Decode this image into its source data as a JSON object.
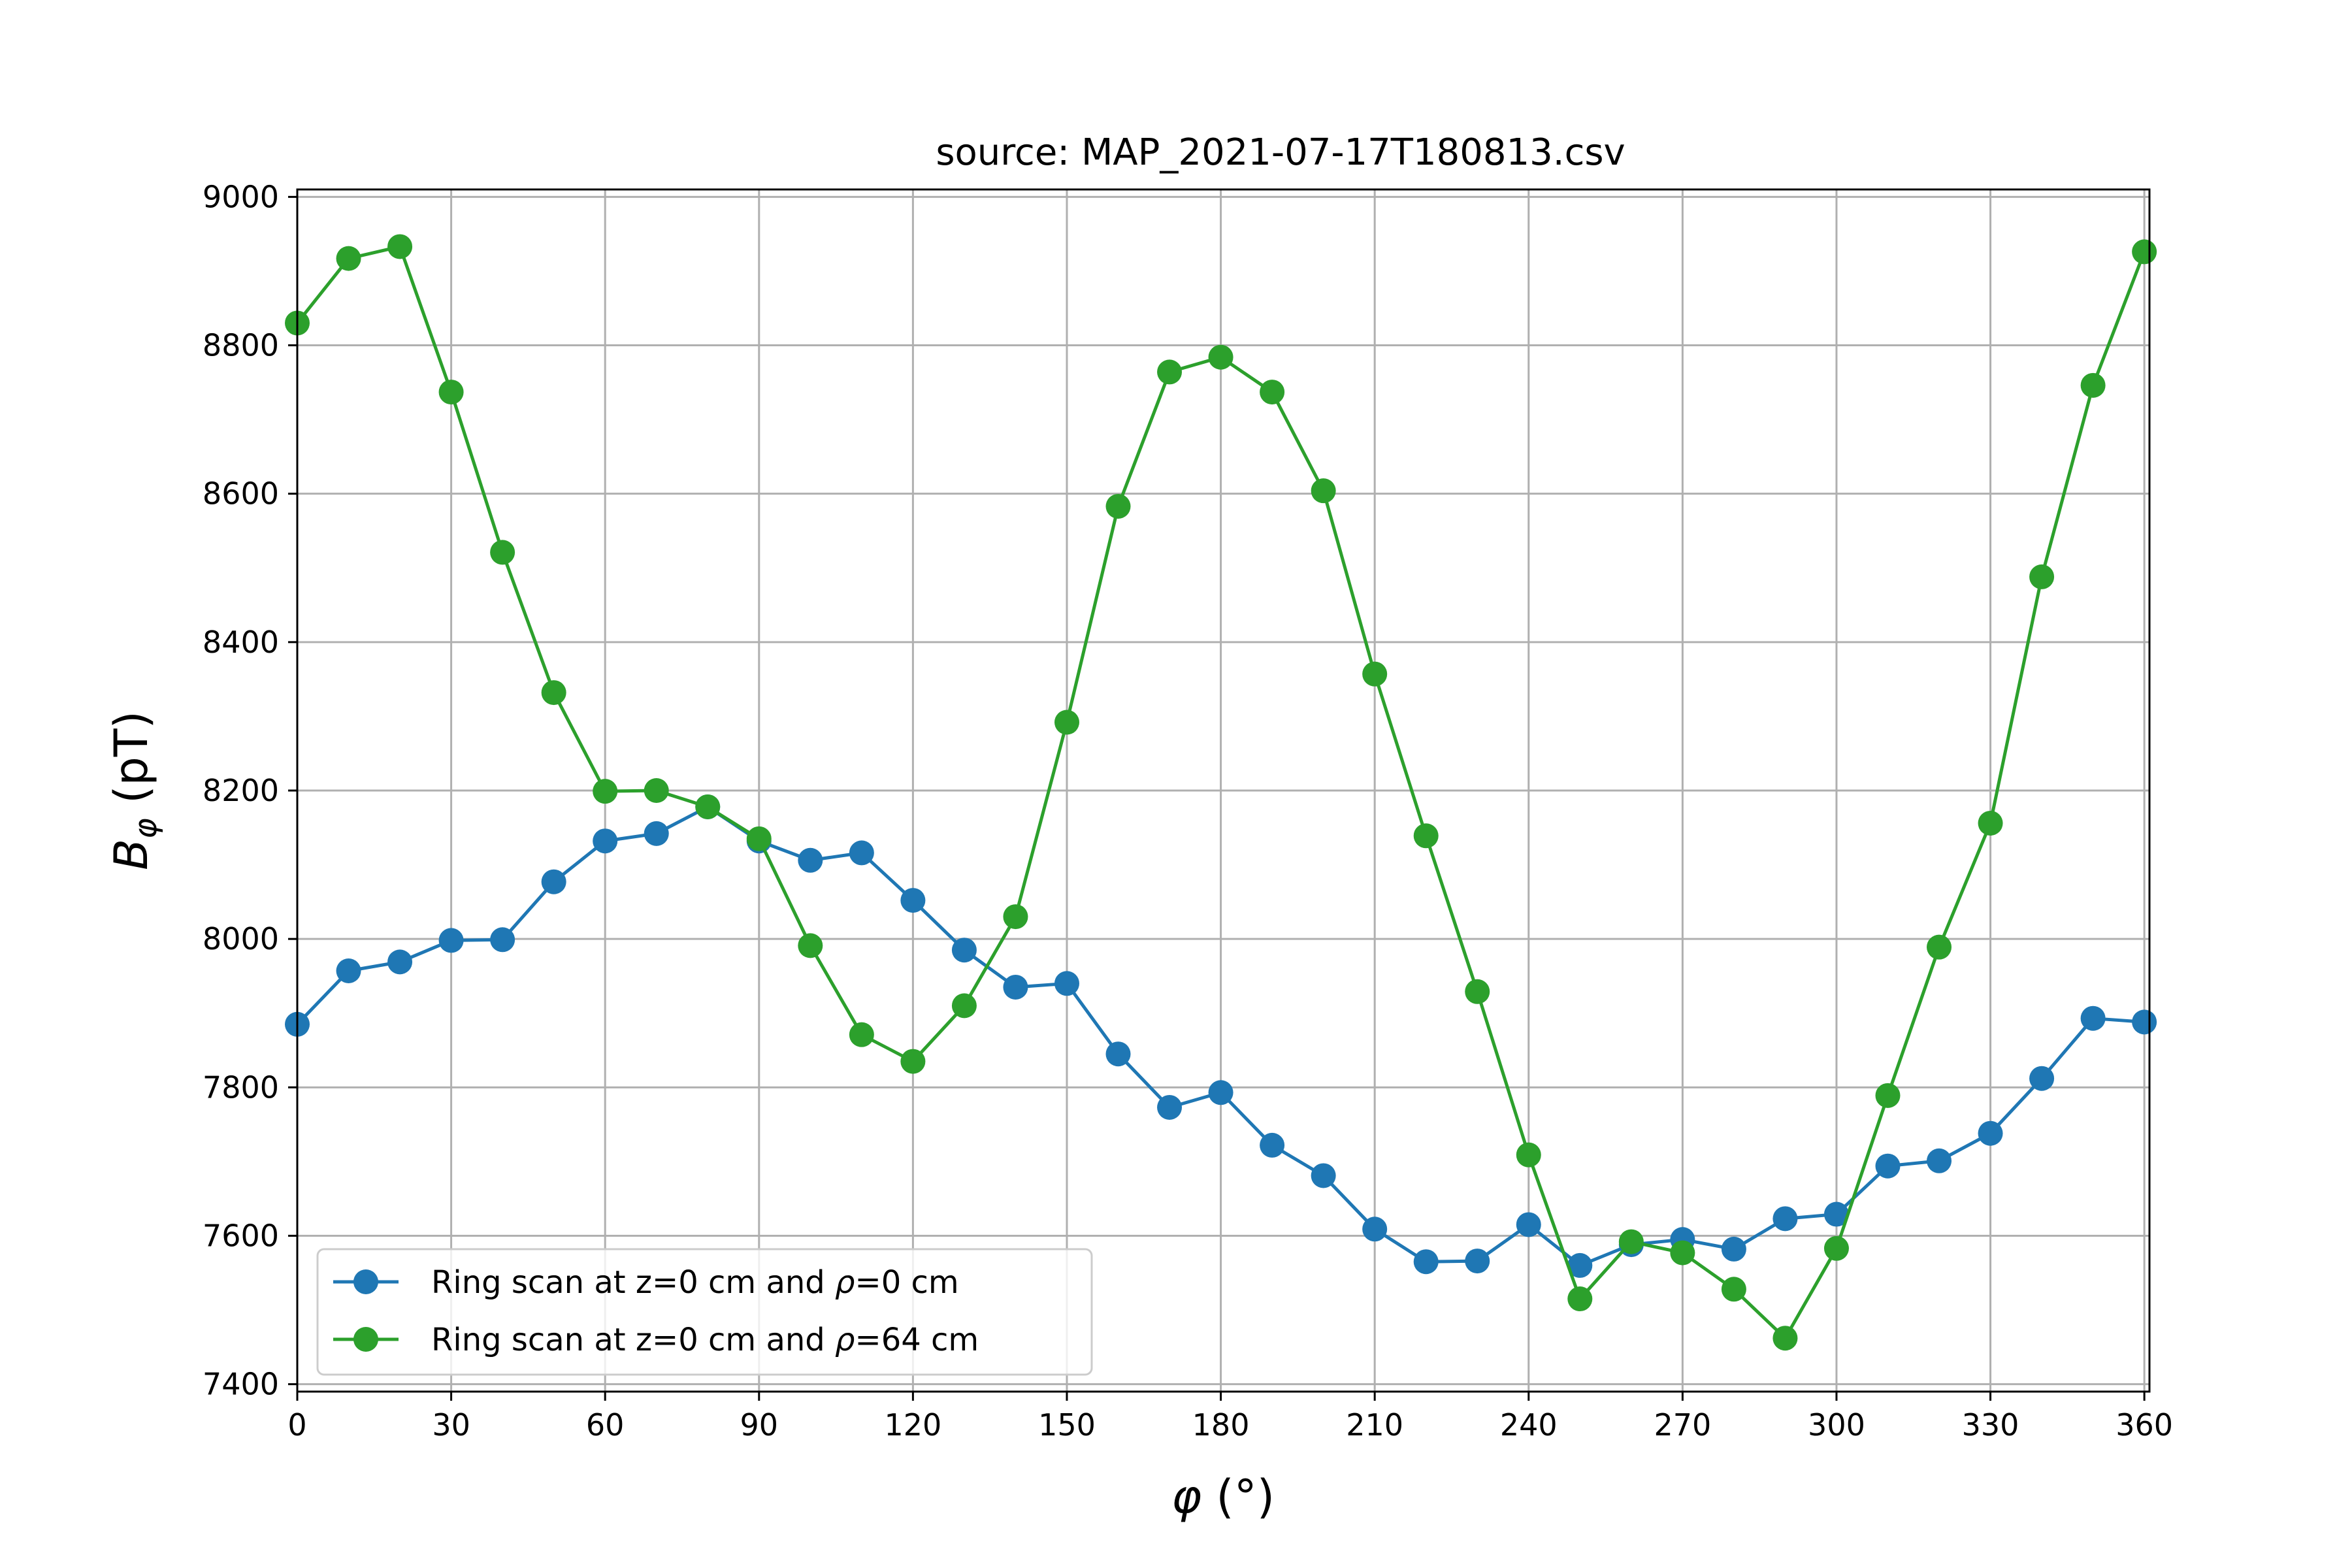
{
  "chart_data": {
    "type": "line",
    "title": "source: MAP_2021-07-17T180813.csv",
    "xlabel": {
      "main": "φ",
      "unit": " (°)"
    },
    "ylabel": {
      "main": "B",
      "sub": "φ",
      "unit": " (pT)"
    },
    "xlim": [
      0,
      361
    ],
    "ylim": [
      7390,
      9010
    ],
    "xticks": [
      0,
      30,
      60,
      90,
      120,
      150,
      180,
      210,
      240,
      270,
      300,
      330,
      360
    ],
    "yticks": [
      7400,
      7600,
      7800,
      8000,
      8200,
      8400,
      8600,
      8800,
      9000
    ],
    "grid": true,
    "legend_position": "lower-left",
    "x": [
      0,
      10,
      20,
      30,
      40,
      50,
      60,
      70,
      80,
      90,
      100,
      110,
      120,
      130,
      140,
      150,
      160,
      170,
      180,
      190,
      200,
      210,
      220,
      230,
      240,
      250,
      260,
      270,
      280,
      290,
      300,
      310,
      320,
      330,
      340,
      350,
      360
    ],
    "series": [
      {
        "name": {
          "prefix": "Ring scan at z=0 cm and ",
          "symbol": "ρ",
          "suffix": "=0 cm"
        },
        "color": "#1f77b4",
        "values": [
          7885,
          7957,
          7969,
          7998,
          7999,
          8077,
          8132,
          8142,
          8178,
          8132,
          8106,
          8116,
          8052,
          7985,
          7935,
          7940,
          7845,
          7773,
          7793,
          7722,
          7681,
          7609,
          7565,
          7566,
          7615,
          7560,
          7588,
          7595,
          7582,
          7623,
          7629,
          7694,
          7701,
          7738,
          7812,
          7893,
          7888
        ]
      },
      {
        "name": {
          "prefix": "Ring scan at z=0 cm and ",
          "symbol": "ρ",
          "suffix": "=64 cm"
        },
        "color": "#2ca02c",
        "values": [
          8830,
          8917,
          8933,
          8737,
          8521,
          8332,
          8199,
          8200,
          8178,
          8135,
          7991,
          7871,
          7835,
          7910,
          8030,
          8292,
          8583,
          8764,
          8784,
          8737,
          8604,
          8357,
          8139,
          7929,
          7709,
          7515,
          7592,
          7577,
          7528,
          7462,
          7583,
          7789,
          7989,
          8156,
          8488,
          8746,
          8926
        ]
      }
    ]
  }
}
